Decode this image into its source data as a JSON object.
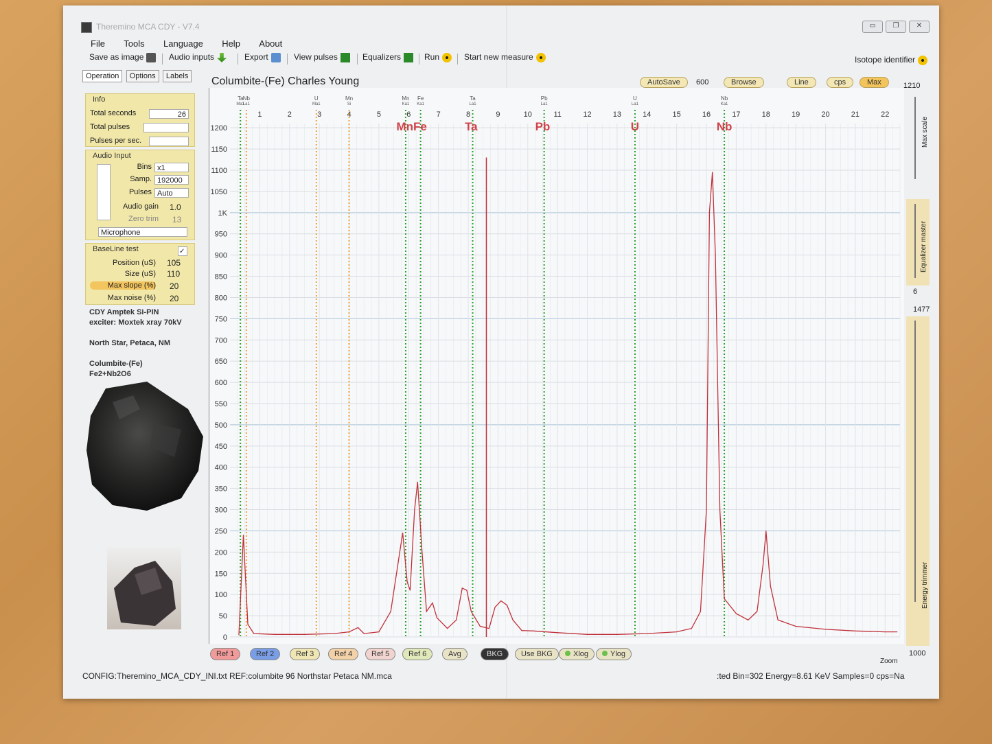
{
  "window": {
    "title": "Theremino MCA CDY - V7.4",
    "minimize": "▭",
    "maximize": "❐",
    "close": "✕"
  },
  "menu": [
    "File",
    "Tools",
    "Language",
    "Help",
    "About"
  ],
  "toolbar": {
    "save_image": "Save as image",
    "audio_inputs": "Audio inputs",
    "export": "Export",
    "view_pulses": "View pulses",
    "equalizers": "Equalizers",
    "run": "Run",
    "start_new_measure": "Start new measure",
    "isotope_identifier": "Isotope identifier"
  },
  "tabs": [
    "Operation",
    "Options",
    "Labels"
  ],
  "info": {
    "title": "Info",
    "total_seconds_label": "Total seconds",
    "total_seconds_value": "26",
    "total_pulses_label": "Total pulses",
    "total_pulses_value": "",
    "pulses_per_sec_label": "Pulses per sec.",
    "pulses_per_sec_value": ""
  },
  "audio_input": {
    "title": "Audio Input",
    "bins_label": "Bins",
    "bins_value": "x1",
    "samp_label": "Samp.",
    "samp_value": "192000",
    "pulses_label": "Pulses",
    "pulses_value": "Auto",
    "gain_label": "Audio gain",
    "gain_value": "1.0",
    "zero_trim_label": "Zero trim",
    "zero_trim_value": "13",
    "device": "Microphone"
  },
  "baseline": {
    "title": "BaseLine test",
    "checked": "✓",
    "position_label": "Position (uS)",
    "position_value": "105",
    "size_label": "Size (uS)",
    "size_value": "110",
    "max_slope_label": "Max slope (%)",
    "max_slope_value": "20",
    "max_noise_label": "Max noise (%)",
    "max_noise_value": "20"
  },
  "notes": {
    "line1": "CDY Amptek Si-PIN",
    "line2": "exciter: Moxtek xray 70kV",
    "line3": "North Star, Petaca, NM",
    "line4": "Columbite-(Fe)",
    "line5": "Fe2+Nb2O6"
  },
  "chart_header": {
    "title": "Columbite-(Fe) Charles Young",
    "autosave": "AutoSave",
    "autosave_value": "600",
    "browse": "Browse",
    "line": "Line",
    "cps": "cps",
    "max": "Max"
  },
  "right_strip": {
    "max_scale_value": "1210",
    "max_scale_label": "Max scale",
    "equalizer_label": "Equalizer master",
    "equalizer_value": "6",
    "energy_value": "1477",
    "energy_label": "Energy trimmer",
    "zoom_label": "Zoom",
    "zoom_value": "1000"
  },
  "bottom_buttons": [
    "Ref 1",
    "Ref 2",
    "Ref 3",
    "Ref 4",
    "Ref 5",
    "Ref 6",
    "Avg",
    "BKG",
    "Use BKG",
    "Xlog",
    "Ylog"
  ],
  "status": {
    "config": "CONFIG:Theremino_MCA_CDY_INI.txt REF:columbite 96 Northstar Petaca NM.mca",
    "right": ":ted Bin=302  Energy=8.61 KeV  Samples=0  cps=Na"
  },
  "chart_data": {
    "type": "line",
    "xlabel": "",
    "ylabel": "",
    "xlim": [
      0,
      22.5
    ],
    "ylim": [
      0,
      1210
    ],
    "x_ticks": [
      1,
      2,
      3,
      4,
      5,
      6,
      7,
      8,
      9,
      10,
      11,
      12,
      13,
      14,
      15,
      16,
      17,
      18,
      19,
      20,
      21,
      22
    ],
    "y_ticks": [
      "0",
      "50",
      "100",
      "150",
      "200",
      "250",
      "300",
      "350",
      "400",
      "450",
      "500",
      "550",
      "600",
      "650",
      "700",
      "750",
      "800",
      "850",
      "900",
      "950",
      "1K",
      "1050",
      "1100",
      "1150",
      "1200"
    ],
    "series": [
      {
        "color": "#c0303a",
        "points": [
          [
            0.3,
            5
          ],
          [
            0.45,
            240
          ],
          [
            0.6,
            30
          ],
          [
            0.8,
            8
          ],
          [
            1.5,
            6
          ],
          [
            2.5,
            6
          ],
          [
            3.5,
            8
          ],
          [
            4.0,
            12
          ],
          [
            4.3,
            22
          ],
          [
            4.5,
            8
          ],
          [
            5.0,
            12
          ],
          [
            5.4,
            60
          ],
          [
            5.7,
            200
          ],
          [
            5.8,
            245
          ],
          [
            5.95,
            130
          ],
          [
            6.05,
            110
          ],
          [
            6.2,
            300
          ],
          [
            6.3,
            365
          ],
          [
            6.45,
            200
          ],
          [
            6.6,
            60
          ],
          [
            6.8,
            80
          ],
          [
            6.95,
            45
          ],
          [
            7.3,
            20
          ],
          [
            7.6,
            40
          ],
          [
            7.8,
            115
          ],
          [
            7.95,
            110
          ],
          [
            8.1,
            60
          ],
          [
            8.4,
            25
          ],
          [
            8.7,
            20
          ],
          [
            8.9,
            70
          ],
          [
            9.1,
            85
          ],
          [
            9.3,
            75
          ],
          [
            9.5,
            40
          ],
          [
            9.8,
            15
          ],
          [
            10.2,
            14
          ],
          [
            11.0,
            10
          ],
          [
            12.0,
            6
          ],
          [
            13.0,
            6
          ],
          [
            14.0,
            8
          ],
          [
            15.0,
            12
          ],
          [
            15.5,
            20
          ],
          [
            15.8,
            60
          ],
          [
            16.0,
            300
          ],
          [
            16.1,
            1000
          ],
          [
            16.2,
            1095
          ],
          [
            16.3,
            900
          ],
          [
            16.45,
            300
          ],
          [
            16.6,
            90
          ],
          [
            17.0,
            55
          ],
          [
            17.4,
            40
          ],
          [
            17.7,
            60
          ],
          [
            17.9,
            170
          ],
          [
            18.0,
            250
          ],
          [
            18.15,
            120
          ],
          [
            18.4,
            40
          ],
          [
            19.0,
            25
          ],
          [
            20.0,
            18
          ],
          [
            21.0,
            14
          ],
          [
            22.0,
            12
          ],
          [
            22.4,
            12
          ]
        ]
      }
    ],
    "element_markers": [
      {
        "label": "Ta",
        "sub": "Ma1",
        "x": 0.35,
        "color": "green"
      },
      {
        "label": "Nb",
        "sub": "La1",
        "x": 0.55,
        "color": "orange"
      },
      {
        "label": "U",
        "sub": "Ma1",
        "x": 2.9,
        "color": "orange"
      },
      {
        "label": "Mn",
        "sub": "Si",
        "x": 4.0,
        "color": "orange"
      },
      {
        "label": "Mn",
        "sub": "Ka1",
        "x": 5.9,
        "color": "green"
      },
      {
        "label": "Fe",
        "sub": "Ka1",
        "x": 6.4,
        "color": "green"
      },
      {
        "label": "Ta",
        "sub": "La1",
        "x": 8.15,
        "color": "green"
      },
      {
        "label": "Pb",
        "sub": "La1",
        "x": 10.55,
        "color": "green"
      },
      {
        "label": "U",
        "sub": "La1",
        "x": 13.6,
        "color": "green"
      },
      {
        "label": "Nb",
        "sub": "Ka1",
        "x": 16.6,
        "color": "green"
      }
    ],
    "peak_labels": [
      {
        "text": "MnFe",
        "x": 6.1
      },
      {
        "text": "Ta",
        "x": 8.1
      },
      {
        "text": "Pb",
        "x": 10.5
      },
      {
        "text": "U",
        "x": 13.6
      },
      {
        "text": "Nb",
        "x": 16.6
      }
    ],
    "grid": true
  }
}
